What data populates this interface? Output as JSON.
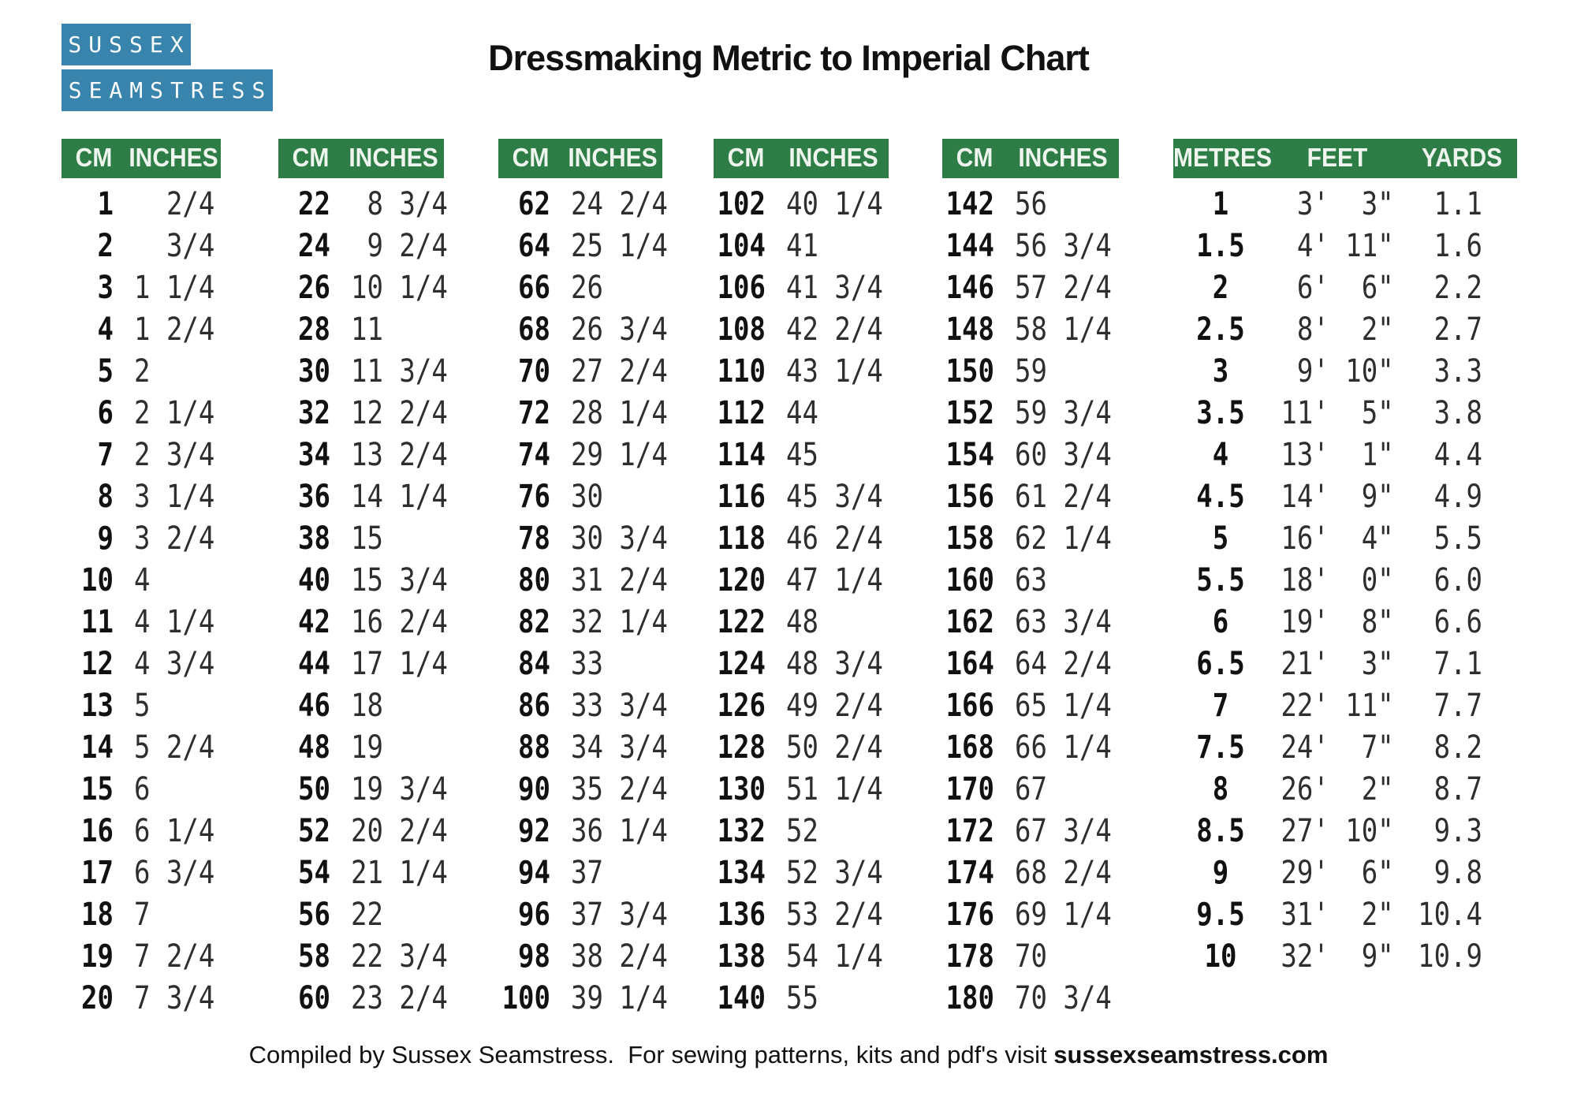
{
  "logo": {
    "line1": "SUSSEX",
    "line2": "SEAMSTRESS"
  },
  "title": "Dressmaking Metric to Imperial Chart",
  "colors": {
    "header_green": "#2e7d46",
    "logo_blue": "#3884ad"
  },
  "tables": [
    {
      "headers": [
        "CM",
        "INCHES"
      ],
      "rows": [
        [
          "1",
          "  2/4"
        ],
        [
          "2",
          "  3/4"
        ],
        [
          "3",
          "1 1/4"
        ],
        [
          "4",
          "1 2/4"
        ],
        [
          "5",
          "2"
        ],
        [
          "6",
          "2 1/4"
        ],
        [
          "7",
          "2 3/4"
        ],
        [
          "8",
          "3 1/4"
        ],
        [
          "9",
          "3 2/4"
        ],
        [
          "10",
          "4"
        ],
        [
          "11",
          "4 1/4"
        ],
        [
          "12",
          "4 3/4"
        ],
        [
          "13",
          "5"
        ],
        [
          "14",
          "5 2/4"
        ],
        [
          "15",
          "6"
        ],
        [
          "16",
          "6 1/4"
        ],
        [
          "17",
          "6 3/4"
        ],
        [
          "18",
          "7"
        ],
        [
          "19",
          "7 2/4"
        ],
        [
          "20",
          "7 3/4"
        ]
      ]
    },
    {
      "headers": [
        "CM",
        "INCHES"
      ],
      "rows": [
        [
          "22",
          " 8 3/4"
        ],
        [
          "24",
          " 9 2/4"
        ],
        [
          "26",
          "10 1/4"
        ],
        [
          "28",
          "11"
        ],
        [
          "30",
          "11 3/4"
        ],
        [
          "32",
          "12 2/4"
        ],
        [
          "34",
          "13 2/4"
        ],
        [
          "36",
          "14 1/4"
        ],
        [
          "38",
          "15"
        ],
        [
          "40",
          "15 3/4"
        ],
        [
          "42",
          "16 2/4"
        ],
        [
          "44",
          "17 1/4"
        ],
        [
          "46",
          "18"
        ],
        [
          "48",
          "19"
        ],
        [
          "50",
          "19 3/4"
        ],
        [
          "52",
          "20 2/4"
        ],
        [
          "54",
          "21 1/4"
        ],
        [
          "56",
          "22"
        ],
        [
          "58",
          "22 3/4"
        ],
        [
          "60",
          "23 2/4"
        ]
      ]
    },
    {
      "headers": [
        "CM",
        "INCHES"
      ],
      "rows": [
        [
          "62",
          "24 2/4"
        ],
        [
          "64",
          "25 1/4"
        ],
        [
          "66",
          "26"
        ],
        [
          "68",
          "26 3/4"
        ],
        [
          "70",
          "27 2/4"
        ],
        [
          "72",
          "28 1/4"
        ],
        [
          "74",
          "29 1/4"
        ],
        [
          "76",
          "30"
        ],
        [
          "78",
          "30 3/4"
        ],
        [
          "80",
          "31 2/4"
        ],
        [
          "82",
          "32 1/4"
        ],
        [
          "84",
          "33"
        ],
        [
          "86",
          "33 3/4"
        ],
        [
          "88",
          "34 3/4"
        ],
        [
          "90",
          "35 2/4"
        ],
        [
          "92",
          "36 1/4"
        ],
        [
          "94",
          "37"
        ],
        [
          "96",
          "37 3/4"
        ],
        [
          "98",
          "38 2/4"
        ],
        [
          "100",
          "39 1/4"
        ]
      ]
    },
    {
      "headers": [
        "CM",
        "INCHES"
      ],
      "rows": [
        [
          "102",
          "40 1/4"
        ],
        [
          "104",
          "41"
        ],
        [
          "106",
          "41 3/4"
        ],
        [
          "108",
          "42 2/4"
        ],
        [
          "110",
          "43 1/4"
        ],
        [
          "112",
          "44"
        ],
        [
          "114",
          "45"
        ],
        [
          "116",
          "45 3/4"
        ],
        [
          "118",
          "46 2/4"
        ],
        [
          "120",
          "47 1/4"
        ],
        [
          "122",
          "48"
        ],
        [
          "124",
          "48 3/4"
        ],
        [
          "126",
          "49 2/4"
        ],
        [
          "128",
          "50 2/4"
        ],
        [
          "130",
          "51 1/4"
        ],
        [
          "132",
          "52"
        ],
        [
          "134",
          "52 3/4"
        ],
        [
          "136",
          "53 2/4"
        ],
        [
          "138",
          "54 1/4"
        ],
        [
          "140",
          "55"
        ]
      ]
    },
    {
      "headers": [
        "CM",
        "INCHES"
      ],
      "rows": [
        [
          "142",
          "56"
        ],
        [
          "144",
          "56 3/4"
        ],
        [
          "146",
          "57 2/4"
        ],
        [
          "148",
          "58 1/4"
        ],
        [
          "150",
          "59"
        ],
        [
          "152",
          "59 3/4"
        ],
        [
          "154",
          "60 3/4"
        ],
        [
          "156",
          "61 2/4"
        ],
        [
          "158",
          "62 1/4"
        ],
        [
          "160",
          "63"
        ],
        [
          "162",
          "63 3/4"
        ],
        [
          "164",
          "64 2/4"
        ],
        [
          "166",
          "65 1/4"
        ],
        [
          "168",
          "66 1/4"
        ],
        [
          "170",
          "67"
        ],
        [
          "172",
          "67 3/4"
        ],
        [
          "174",
          "68 2/4"
        ],
        [
          "176",
          "69 1/4"
        ],
        [
          "178",
          "70"
        ],
        [
          "180",
          "70 3/4"
        ]
      ]
    }
  ],
  "metric": {
    "headers": [
      "METRES",
      "FEET",
      "YARDS"
    ],
    "rows": [
      [
        "1",
        " 3'  3\"",
        "1.1"
      ],
      [
        "1.5",
        " 4' 11\"",
        "1.6"
      ],
      [
        "2",
        " 6'  6\"",
        "2.2"
      ],
      [
        "2.5",
        " 8'  2\"",
        "2.7"
      ],
      [
        "3",
        " 9' 10\"",
        "3.3"
      ],
      [
        "3.5",
        "11'  5\"",
        "3.8"
      ],
      [
        "4",
        "13'  1\"",
        "4.4"
      ],
      [
        "4.5",
        "14'  9\"",
        "4.9"
      ],
      [
        "5",
        "16'  4\"",
        "5.5"
      ],
      [
        "5.5",
        "18'  0\"",
        "6.0"
      ],
      [
        "6",
        "19'  8\"",
        "6.6"
      ],
      [
        "6.5",
        "21'  3\"",
        "7.1"
      ],
      [
        "7",
        "22' 11\"",
        "7.7"
      ],
      [
        "7.5",
        "24'  7\"",
        "8.2"
      ],
      [
        "8",
        "26'  2\"",
        "8.7"
      ],
      [
        "8.5",
        "27' 10\"",
        "9.3"
      ],
      [
        "9",
        "29'  6\"",
        "9.8"
      ],
      [
        "9.5",
        "31'  2\"",
        "10.4"
      ],
      [
        "10",
        "32'  9\"",
        "10.9"
      ]
    ]
  },
  "footer": {
    "text": "Compiled by Sussex Seamstress.  For sewing patterns, kits and pdf's visit ",
    "site": "sussexseamstress.com"
  }
}
